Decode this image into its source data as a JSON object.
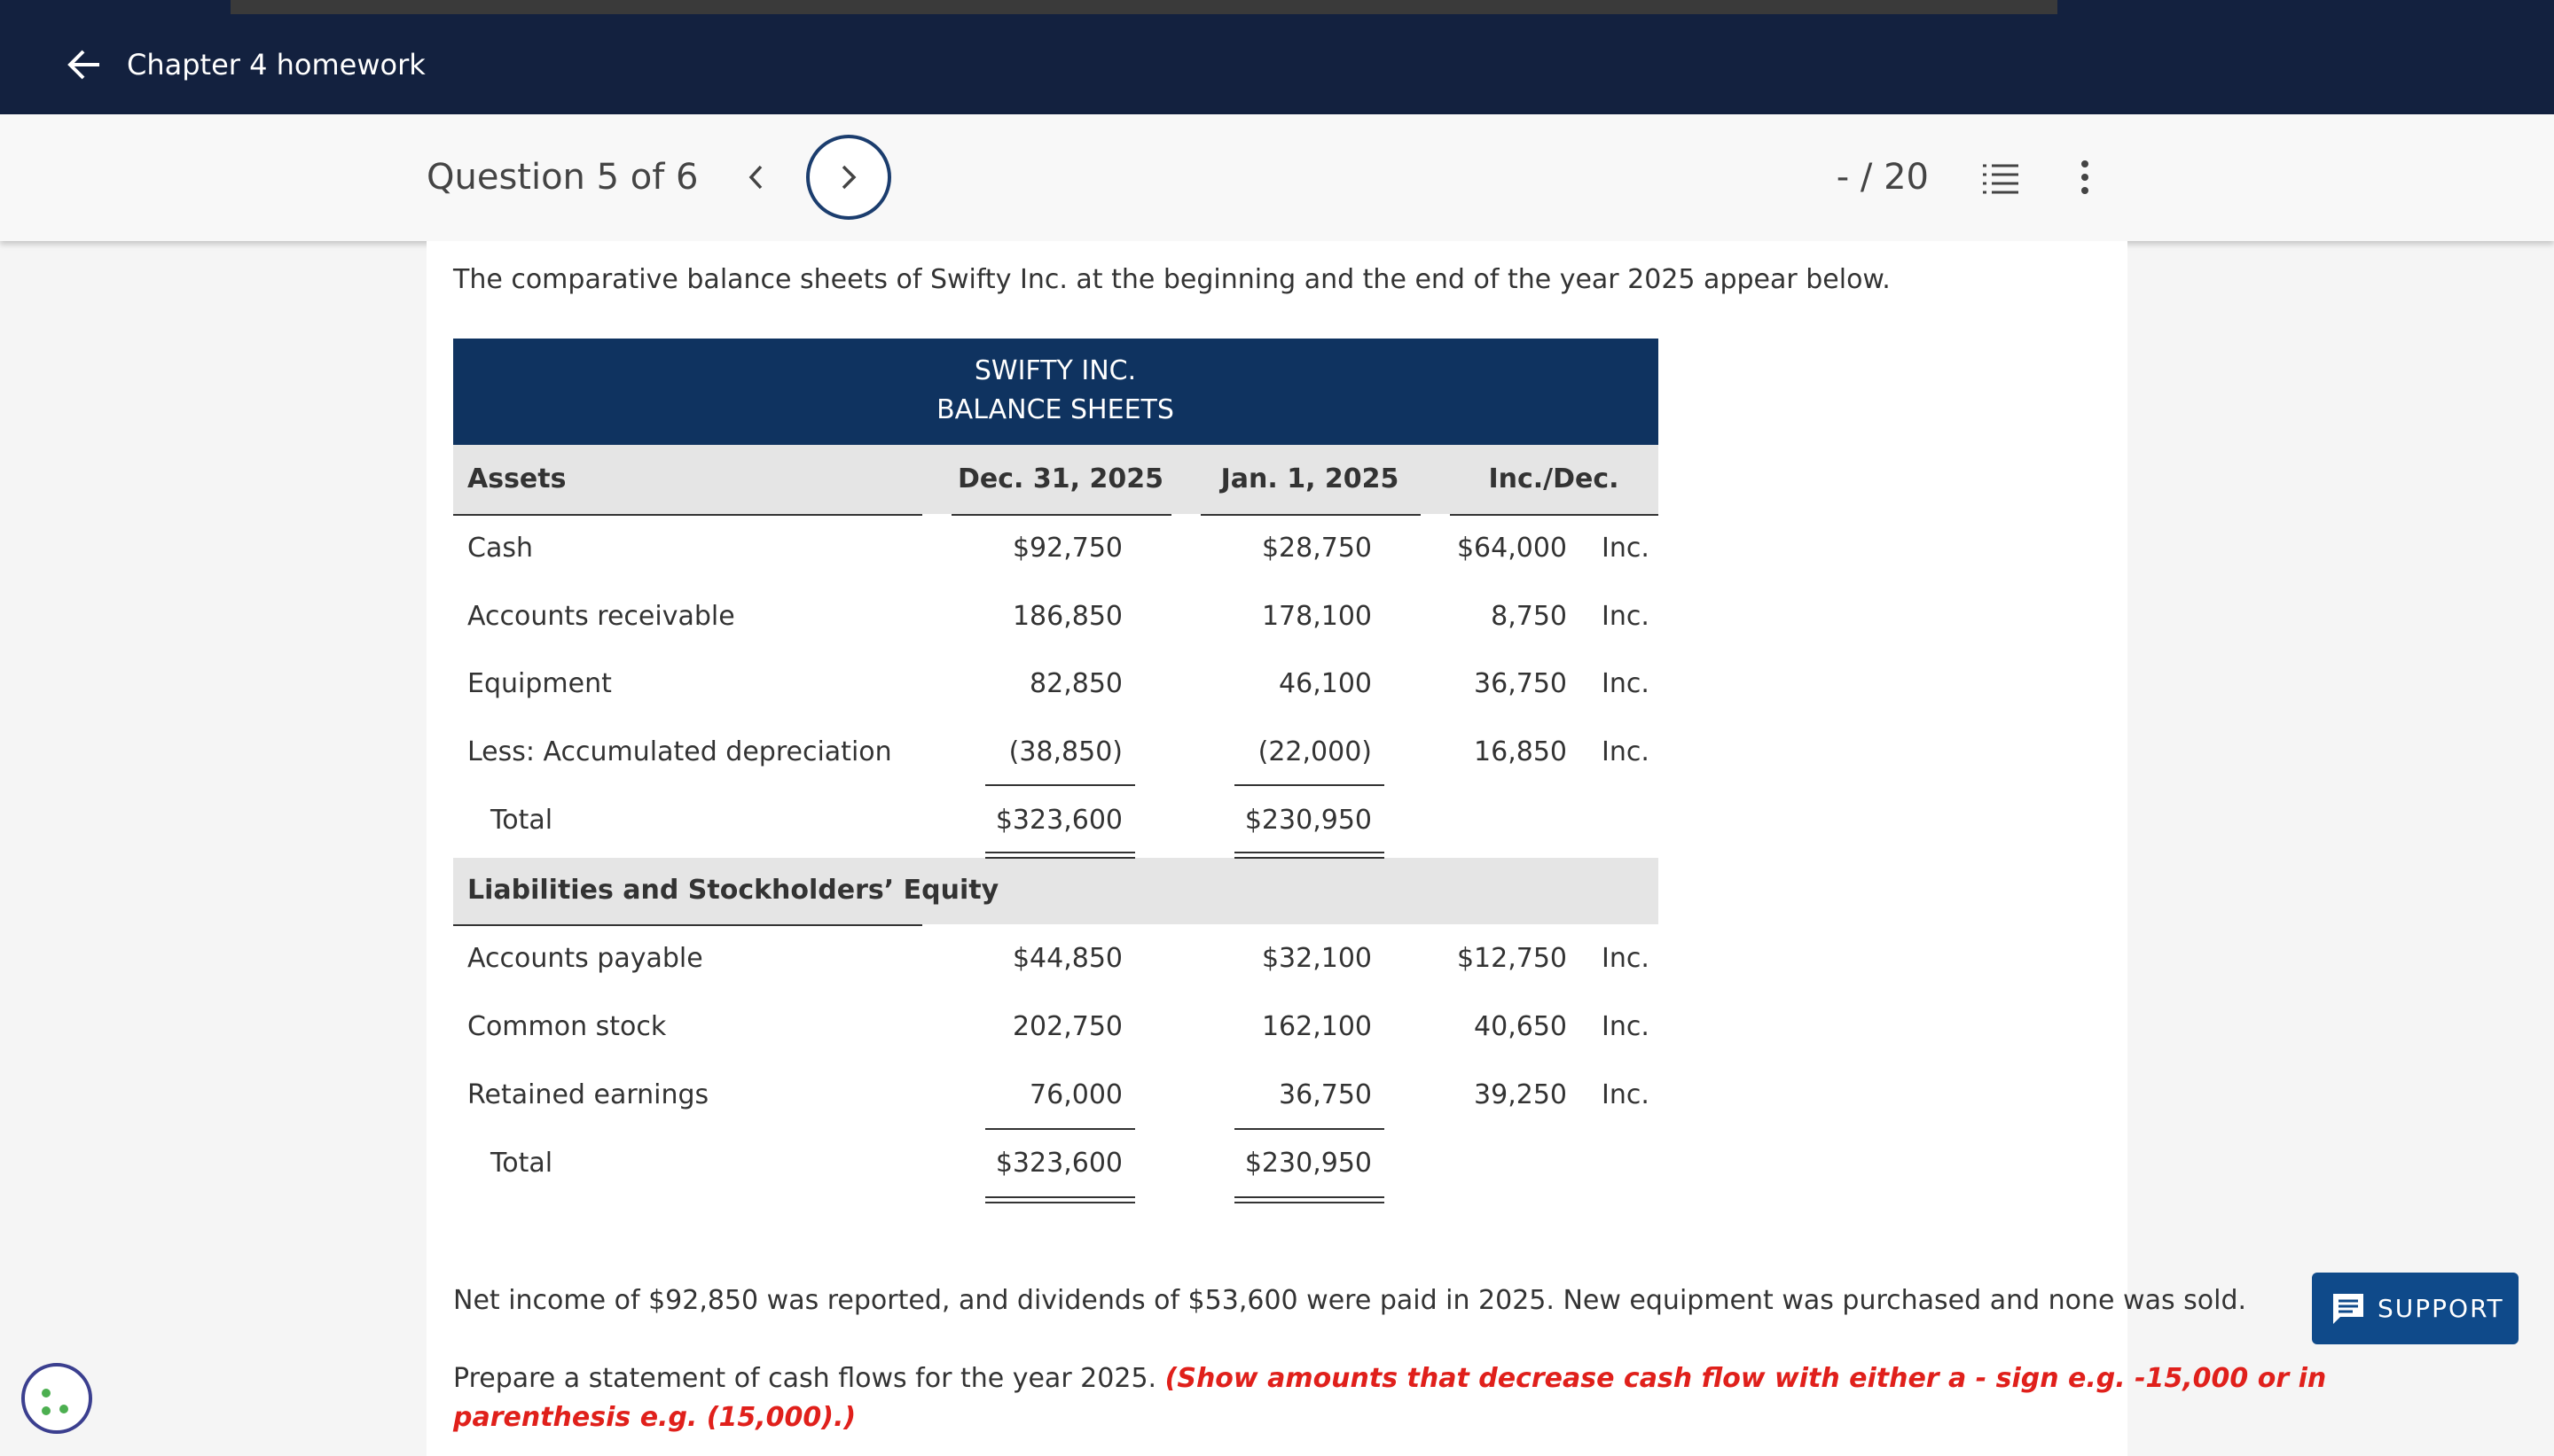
{
  "header": {
    "back_label": "Chapter 4 homework"
  },
  "question": {
    "label": "Question 5 of 6",
    "score": "- / 20"
  },
  "intro": "The comparative balance sheets of Swifty Inc. at the beginning and the end of the year 2025 appear below.",
  "table": {
    "title_lines": [
      "SWIFTY INC.",
      "BALANCE SHEETS"
    ],
    "columns": [
      "Assets",
      "Dec. 31, 2025",
      "Jan. 1, 2025",
      "Inc./Dec."
    ],
    "assets": [
      [
        "Cash",
        "$92,750",
        "$28,750",
        "$64,000",
        "Inc."
      ],
      [
        "Accounts receivable",
        "186,850",
        "178,100",
        "8,750",
        "Inc."
      ],
      [
        "Equipment",
        "82,850",
        "46,100",
        "36,750",
        "Inc."
      ],
      [
        "Less: Accumulated depreciation",
        "(38,850)",
        "(22,000)",
        "16,850",
        "Inc."
      ],
      [
        "Total",
        "$323,600",
        "$230,950"
      ]
    ],
    "liabilities_heading": "Liabilities and Stockholders’ Equity",
    "liabilities": [
      [
        "Accounts payable",
        "$44,850",
        "$32,100",
        "$12,750",
        "Inc."
      ],
      [
        "Common stock",
        "202,750",
        "162,100",
        "40,650",
        "Inc."
      ],
      [
        "Retained earnings",
        "76,000",
        "36,750",
        "39,250",
        "Inc."
      ],
      [
        "Total",
        "$323,600",
        "$230,950"
      ]
    ]
  },
  "note": "Net income of $92,850 was reported, and dividends of $53,600 were paid in 2025. New equipment was purchased and none was sold.",
  "instructions": {
    "text": "Prepare a statement of cash flows for the year 2025.",
    "emphasis_line1": "(Show amounts that decrease cash flow with either a - sign e.g. -15,000 or in",
    "emphasis_line2": "parenthesis e.g. (15,000).)"
  },
  "support": "SUPPORT"
}
